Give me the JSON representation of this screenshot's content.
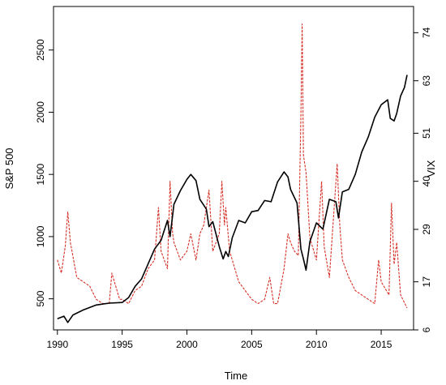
{
  "chart_data": {
    "type": "line",
    "title": "",
    "xlabel": "Time",
    "ylabel_left": "S&P 500",
    "ylabel_right": "VIX",
    "xlim": [
      1989.7,
      2017.5
    ],
    "ylim_left": [
      250,
      2850
    ],
    "ylim_right": [
      6,
      80
    ],
    "x_ticks": [
      1990,
      1995,
      2000,
      2005,
      2010,
      2015
    ],
    "y_left_ticks": [
      500,
      1000,
      1500,
      2000,
      2500
    ],
    "y_right_ticks": [
      6,
      17,
      29,
      40,
      51,
      63,
      74
    ],
    "grid": false,
    "legend": "none",
    "series": [
      {
        "axis": "left",
        "color": "#000000",
        "style": "solid",
        "x": [
          1990.0,
          1990.5,
          1990.8,
          1991.2,
          1992.0,
          1993.0,
          1994.0,
          1995.0,
          1995.5,
          1996.0,
          1996.5,
          1997.0,
          1997.5,
          1998.0,
          1998.5,
          1998.7,
          1999.0,
          1999.5,
          2000.0,
          2000.3,
          2000.7,
          2001.0,
          2001.5,
          2001.7,
          2002.0,
          2002.5,
          2002.8,
          2003.0,
          2003.2,
          2003.5,
          2004.0,
          2004.5,
          2005.0,
          2005.5,
          2006.0,
          2006.5,
          2007.0,
          2007.5,
          2007.8,
          2008.0,
          2008.5,
          2008.8,
          2009.0,
          2009.2,
          2009.5,
          2010.0,
          2010.5,
          2011.0,
          2011.5,
          2011.7,
          2012.0,
          2012.5,
          2013.0,
          2013.5,
          2014.0,
          2014.5,
          2015.0,
          2015.5,
          2015.7,
          2016.0,
          2016.2,
          2016.5,
          2016.8,
          2017.0
        ],
        "values": [
          340,
          360,
          310,
          370,
          410,
          450,
          465,
          470,
          510,
          600,
          660,
          780,
          900,
          970,
          1130,
          1000,
          1260,
          1370,
          1460,
          1500,
          1450,
          1300,
          1220,
          1080,
          1120,
          920,
          820,
          880,
          840,
          990,
          1130,
          1110,
          1200,
          1210,
          1290,
          1280,
          1440,
          1520,
          1480,
          1380,
          1270,
          900,
          820,
          730,
          960,
          1110,
          1060,
          1300,
          1280,
          1150,
          1360,
          1380,
          1500,
          1680,
          1800,
          1960,
          2060,
          2100,
          1950,
          1930,
          1990,
          2130,
          2200,
          2300
        ]
      },
      {
        "axis": "right",
        "color": "#d73027",
        "style": "dashed",
        "x": [
          1990.0,
          1990.3,
          1990.6,
          1990.8,
          1991.0,
          1991.5,
          1992.0,
          1992.5,
          1993.0,
          1993.5,
          1994.0,
          1994.2,
          1994.8,
          1995.0,
          1995.5,
          1996.0,
          1996.5,
          1997.0,
          1997.5,
          1997.8,
          1998.0,
          1998.5,
          1998.7,
          1998.9,
          1999.0,
          1999.5,
          2000.0,
          2000.3,
          2000.7,
          2001.0,
          2001.3,
          2001.7,
          2002.0,
          2002.5,
          2002.7,
          2002.9,
          2003.0,
          2003.3,
          2003.7,
          2004.0,
          2004.5,
          2005.0,
          2005.5,
          2006.0,
          2006.4,
          2006.7,
          2007.0,
          2007.5,
          2007.8,
          2008.0,
          2008.3,
          2008.6,
          2008.8,
          2008.9,
          2009.0,
          2009.2,
          2009.5,
          2010.0,
          2010.4,
          2010.6,
          2011.0,
          2011.6,
          2011.8,
          2012.0,
          2012.5,
          2013.0,
          2013.5,
          2014.0,
          2014.5,
          2014.8,
          2015.0,
          2015.6,
          2015.8,
          2016.0,
          2016.2,
          2016.5,
          2017.0
        ],
        "values": [
          22,
          19,
          25,
          33,
          26,
          18,
          17,
          16,
          13,
          12,
          12,
          19,
          13,
          13,
          12,
          15,
          16,
          20,
          22,
          34,
          24,
          20,
          40,
          28,
          26,
          22,
          24,
          28,
          22,
          28,
          30,
          38,
          24,
          28,
          40,
          30,
          34,
          24,
          20,
          17,
          15,
          13,
          12,
          13,
          18,
          12,
          12,
          20,
          28,
          26,
          24,
          23,
          55,
          76,
          46,
          42,
          27,
          22,
          40,
          25,
          18,
          44,
          30,
          22,
          18,
          15,
          14,
          13,
          12,
          22,
          17,
          14,
          35,
          21,
          26,
          14,
          11
        ]
      }
    ]
  }
}
